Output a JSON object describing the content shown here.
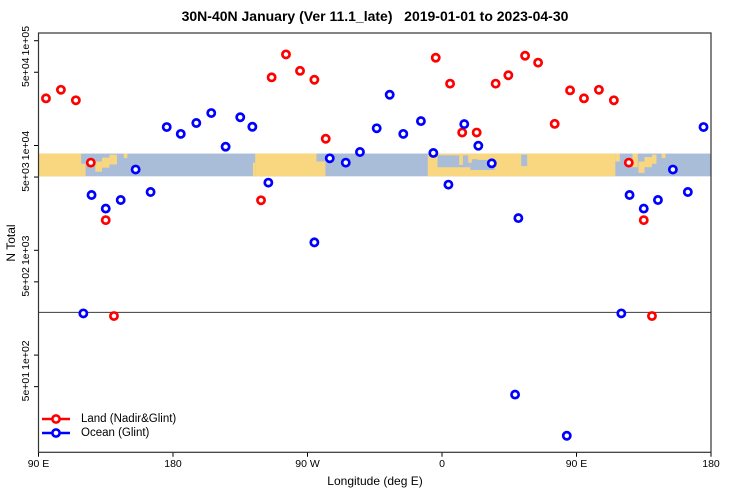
{
  "chart_data": {
    "type": "scatter",
    "title": "30N-40N January (Ver 11.1_late)   2019-01-01 to 2023-04-30",
    "xlabel": "Longitude (deg E)",
    "ylabel": "N Total",
    "grid": false,
    "x_axis": {
      "note": "longitude axis wraps eastward from 90E through 180, 90W, 0 back to 180; points with lon 90E-180E are plotted twice (at deg and deg+360)",
      "range_axis_deg": [
        90,
        540
      ],
      "ticks": [
        {
          "deg": 90,
          "label": "90 E"
        },
        {
          "deg": 180,
          "label": "180"
        },
        {
          "deg": 270,
          "label": "90 W"
        },
        {
          "deg": 360,
          "label": "0"
        },
        {
          "deg": 450,
          "label": "90 E"
        },
        {
          "deg": 540,
          "label": "180"
        }
      ]
    },
    "y_axis": {
      "scale": "log10",
      "range": [
        12,
        118000
      ],
      "ticks": [
        {
          "value": 100000,
          "label": "1e+05"
        },
        {
          "value": 50000,
          "label": "5e+04"
        },
        {
          "value": 10000,
          "label": "1e+04"
        },
        {
          "value": 5000,
          "label": "5e+03"
        },
        {
          "value": 1000,
          "label": "1e+03"
        },
        {
          "value": 500,
          "label": "5e+02"
        },
        {
          "value": 100,
          "label": "1e+02"
        },
        {
          "value": 50,
          "label": "5e+01"
        }
      ]
    },
    "reference_line": {
      "value": 256,
      "color": "#3c3c3c"
    },
    "map_band": {
      "value_top": 8380,
      "value_bottom": 5080,
      "ocean_color": "#a9bdd8",
      "land_color": "#f9d680",
      "land_segments": [
        [
          90,
          118.5,
          0,
          1
        ],
        [
          118.5,
          121.5,
          0.45,
          1
        ],
        [
          128,
          132.5,
          0.35,
          0.8
        ],
        [
          132.5,
          137.5,
          0.18,
          0.62
        ],
        [
          137.5,
          142.5,
          0.05,
          0.48
        ],
        [
          147,
          149.5,
          0,
          0.2
        ],
        [
          233.5,
          235,
          0.4,
          1
        ],
        [
          235,
          276,
          0,
          1
        ],
        [
          276,
          282,
          0.35,
          1
        ],
        [
          350.5,
          476,
          0,
          1
        ],
        [
          476,
          479,
          0,
          0.35
        ],
        [
          487.5,
          491,
          0,
          0.6
        ],
        [
          491.5,
          495.5,
          0.35,
          0.85
        ],
        [
          495.5,
          500.5,
          0.15,
          0.6
        ],
        [
          500.5,
          503.5,
          0.05,
          0.45
        ],
        [
          507,
          509.5,
          0,
          0.2
        ]
      ],
      "sea_patches": [
        [
          357,
          379,
          0.08,
          0.6
        ],
        [
          379,
          395,
          0.25,
          0.72
        ],
        [
          413,
          417,
          0.05,
          0.55
        ]
      ],
      "land_overlays": [
        [
          371.5,
          374,
          0.08,
          0.5
        ],
        [
          377.5,
          380,
          0.05,
          0.4
        ],
        [
          384,
          395.5,
          0,
          0.28
        ]
      ]
    },
    "series": [
      {
        "name": "Land (Nadir&Glint)",
        "color": "#ff0000",
        "points": [
          [
            95,
            28200
          ],
          [
            105,
            34000
          ],
          [
            115,
            27000
          ],
          [
            125,
            6860
          ],
          [
            135,
            1940
          ],
          [
            140.5,
            236
          ],
          [
            238.9,
            3000
          ],
          [
            246,
            44700
          ],
          [
            255.6,
            74000
          ],
          [
            265,
            51600
          ],
          [
            274.6,
            42400
          ],
          [
            282.2,
            11600
          ],
          [
            355.8,
            68800
          ],
          [
            365.4,
            38900
          ],
          [
            373.5,
            13300
          ],
          [
            383.2,
            13300
          ],
          [
            395.9,
            38900
          ],
          [
            404.4,
            46800
          ],
          [
            415.6,
            71900
          ],
          [
            424.3,
            61700
          ],
          [
            435.4,
            16100
          ],
          [
            445.7,
            33600
          ],
          [
            455,
            28200
          ],
          [
            465,
            34000
          ],
          [
            475,
            27000
          ],
          [
            485,
            6860
          ],
          [
            495,
            1940
          ],
          [
            500.5,
            236
          ]
        ]
      },
      {
        "name": "Ocean (Glint)",
        "color": "#0000ff",
        "points": [
          [
            120,
            250
          ],
          [
            125.5,
            3370
          ],
          [
            135,
            2500
          ],
          [
            145,
            3020
          ],
          [
            155,
            5900
          ],
          [
            165,
            3600
          ],
          [
            175.8,
            15000
          ],
          [
            185.2,
            12900
          ],
          [
            195.6,
            16400
          ],
          [
            205.6,
            20400
          ],
          [
            215.2,
            9740
          ],
          [
            225,
            18600
          ],
          [
            233.1,
            15100
          ],
          [
            243.8,
            4420
          ],
          [
            274.6,
            1190
          ],
          [
            284.9,
            7550
          ],
          [
            295.6,
            6860
          ],
          [
            305.1,
            8670
          ],
          [
            316.3,
            14600
          ],
          [
            325,
            30500
          ],
          [
            334.1,
            12900
          ],
          [
            345.9,
            17100
          ],
          [
            354.2,
            8490
          ],
          [
            364.3,
            4230
          ],
          [
            374.9,
            16000
          ],
          [
            384.3,
            9950
          ],
          [
            393.3,
            6760
          ],
          [
            408.9,
            42
          ],
          [
            411.1,
            2030
          ],
          [
            443.5,
            17
          ],
          [
            480,
            250
          ],
          [
            485.5,
            3370
          ],
          [
            495,
            2500
          ],
          [
            504.5,
            3020
          ],
          [
            514.5,
            5900
          ],
          [
            524.5,
            3600
          ],
          [
            535,
            15000
          ]
        ]
      }
    ],
    "legend": {
      "position": "bottom-left",
      "entries": [
        {
          "label": "Land (Nadir&Glint)",
          "color": "#ff0000"
        },
        {
          "label": "Ocean (Glint)",
          "color": "#0000ff"
        }
      ]
    },
    "style": {
      "point_radius": 3.6,
      "point_stroke_width": 2.7,
      "border_color": "#333333"
    }
  }
}
